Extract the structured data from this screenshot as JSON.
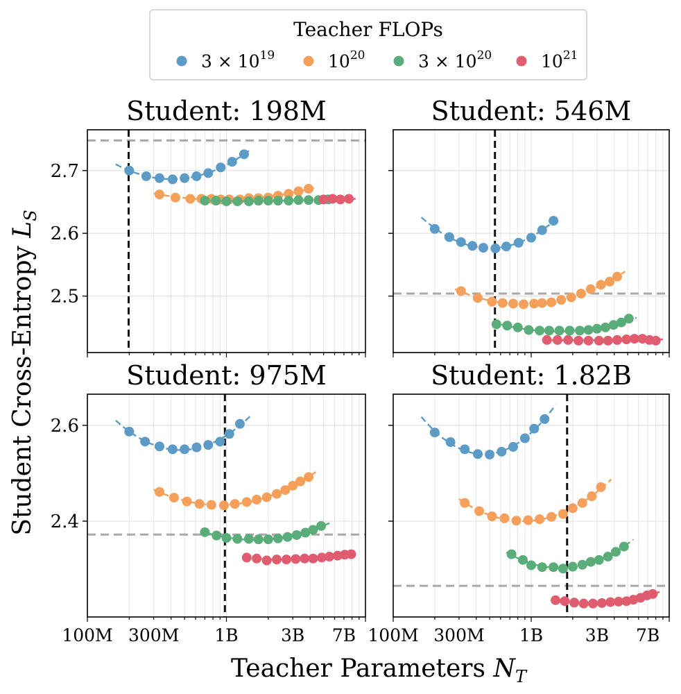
{
  "chart_data": {
    "type": "scatter",
    "x_scale": "log",
    "xlim": [
      100000000.0,
      10000000000.0
    ],
    "grid": true,
    "legend": {
      "title": "Teacher FLOPs",
      "placement": "top-center",
      "entries": [
        {
          "key": "3e19",
          "label_base": "3 × 10",
          "label_exp": "19",
          "color": "#5b9bc5"
        },
        {
          "key": "1e20",
          "label_base": "10",
          "label_exp": "20",
          "color": "#f4a05a"
        },
        {
          "key": "3e20",
          "label_base": "3 × 10",
          "label_exp": "20",
          "color": "#5aac78"
        },
        {
          "key": "1e21",
          "label_base": "10",
          "label_exp": "21",
          "color": "#e05d6f"
        }
      ]
    },
    "xlabel_main": "Teacher Parameters",
    "xlabel_symbol": "N",
    "xlabel_sub": "T",
    "ylabel_main": "Student Cross-Entropy",
    "ylabel_symbol": "L",
    "ylabel_sub": "S",
    "x_tick_values": [
      100000000.0,
      300000000.0,
      1000000000.0,
      3000000000.0,
      7000000000.0
    ],
    "x_tick_labels": [
      "100M",
      "300M",
      "1B",
      "3B",
      "7B"
    ],
    "panels": [
      {
        "title": "Student: 198M",
        "ylim": [
          2.41,
          2.765
        ],
        "y_ticks": [
          2.5,
          2.6,
          2.7
        ],
        "y_tick_labels": [
          "2.5",
          "2.6",
          "2.7"
        ],
        "student_params": 198000000.0,
        "reference_loss": 2.748,
        "series": [
          {
            "key": "3e19",
            "x": [
              200000000.0,
              265000000.0,
              330000000.0,
              410000000.0,
              500000000.0,
              610000000.0,
              740000000.0,
              910000000.0,
              1100000000.0,
              1340000000.0
            ],
            "y": [
              2.7,
              2.691,
              2.688,
              2.686,
              2.688,
              2.691,
              2.696,
              2.705,
              2.714,
              2.726
            ],
            "fit_x": [
              160000000.0,
              1500000000.0
            ]
          },
          {
            "key": "1e20",
            "x": [
              330000000.0,
              430000000.0,
              550000000.0,
              660000000.0,
              780000000.0,
              910000000.0,
              1050000000.0,
              1250000000.0,
              1450000000.0,
              1700000000.0,
              2000000000.0,
              2350000000.0,
              2800000000.0,
              3300000000.0,
              3900000000.0
            ],
            "y": [
              2.662,
              2.657,
              2.655,
              2.655,
              2.655,
              2.654,
              2.654,
              2.654,
              2.656,
              2.656,
              2.657,
              2.66,
              2.663,
              2.667,
              2.671
            ],
            "fit_x": [
              300000000.0,
              4500000000.0
            ]
          },
          {
            "key": "3e20",
            "x": [
              700000000.0,
              840000000.0,
              1000000000.0,
              1200000000.0,
              1450000000.0,
              1700000000.0,
              2000000000.0,
              2350000000.0,
              2800000000.0,
              3300000000.0,
              3900000000.0,
              4600000000.0,
              5400000000.0
            ],
            "y": [
              2.652,
              2.652,
              2.651,
              2.651,
              2.651,
              2.652,
              2.652,
              2.652,
              2.652,
              2.653,
              2.653,
              2.653,
              2.654
            ],
            "fit_x": [
              650000000.0,
              6000000000.0
            ]
          },
          {
            "key": "1e21",
            "x": [
              5000000000.0,
              5800000000.0,
              6600000000.0,
              7600000000.0
            ],
            "y": [
              2.654,
              2.655,
              2.654,
              2.655
            ],
            "fit_x": [
              4800000000.0,
              8500000000.0
            ]
          }
        ]
      },
      {
        "title": "Student: 546M",
        "ylim": [
          2.41,
          2.765
        ],
        "y_ticks": [
          2.5,
          2.6,
          2.7
        ],
        "y_tick_labels": [
          "2.5",
          "2.6",
          "2.7"
        ],
        "student_params": 546000000.0,
        "reference_loss": 2.504,
        "series": [
          {
            "key": "3e19",
            "x": [
              200000000.0,
              255000000.0,
              310000000.0,
              375000000.0,
              450000000.0,
              550000000.0,
              660000000.0,
              810000000.0,
              1000000000.0,
              1200000000.0,
              1450000000.0
            ],
            "y": [
              2.607,
              2.594,
              2.586,
              2.58,
              2.577,
              2.576,
              2.579,
              2.585,
              2.593,
              2.605,
              2.62
            ],
            "fit_x": [
              160000000.0,
              1600000000.0
            ]
          },
          {
            "key": "1e20",
            "x": [
              310000000.0,
              410000000.0,
              520000000.0,
              620000000.0,
              740000000.0,
              880000000.0,
              1050000000.0,
              1200000000.0,
              1400000000.0,
              1650000000.0,
              1950000000.0,
              2300000000.0,
              2700000000.0,
              3200000000.0,
              3700000000.0,
              4200000000.0
            ],
            "y": [
              2.508,
              2.497,
              2.491,
              2.489,
              2.488,
              2.487,
              2.488,
              2.489,
              2.49,
              2.494,
              2.498,
              2.504,
              2.511,
              2.518,
              2.523,
              2.531
            ],
            "fit_x": [
              280000000.0,
              4800000000.0
            ]
          },
          {
            "key": "3e20",
            "x": [
              560000000.0,
              670000000.0,
              800000000.0,
              960000000.0,
              1150000000.0,
              1350000000.0,
              1600000000.0,
              1900000000.0,
              2250000000.0,
              2600000000.0,
              3000000000.0,
              3450000000.0,
              3950000000.0,
              4500000000.0,
              5100000000.0
            ],
            "y": [
              2.455,
              2.453,
              2.45,
              2.446,
              2.445,
              2.445,
              2.445,
              2.445,
              2.445,
              2.446,
              2.448,
              2.45,
              2.454,
              2.458,
              2.464
            ],
            "fit_x": [
              520000000.0,
              5800000000.0
            ]
          },
          {
            "key": "1e21",
            "x": [
              1300000000.0,
              1550000000.0,
              1850000000.0,
              2200000000.0,
              2600000000.0,
              3100000000.0,
              3600000000.0,
              4200000000.0,
              4900000000.0,
              5600000000.0,
              6400000000.0,
              7200000000.0,
              8000000000.0
            ],
            "y": [
              2.43,
              2.43,
              2.43,
              2.429,
              2.429,
              2.429,
              2.429,
              2.43,
              2.431,
              2.432,
              2.432,
              2.43,
              2.429
            ],
            "fit_x": [
              1200000000.0,
              9000000000.0
            ]
          }
        ]
      },
      {
        "title": "Student: 975M",
        "ylim": [
          2.2,
          2.665
        ],
        "y_ticks": [
          2.4,
          2.6
        ],
        "y_tick_labels": [
          "2.4",
          "2.6"
        ],
        "student_params": 975000000.0,
        "reference_loss": 2.372,
        "series": [
          {
            "key": "3e19",
            "x": [
              200000000.0,
              260000000.0,
              330000000.0,
              410000000.0,
              500000000.0,
              610000000.0,
              740000000.0,
              900000000.0,
              1050000000.0,
              1250000000.0
            ],
            "y": [
              2.587,
              2.566,
              2.556,
              2.55,
              2.55,
              2.554,
              2.559,
              2.566,
              2.582,
              2.603
            ],
            "fit_x": [
              160000000.0,
              1500000000.0
            ]
          },
          {
            "key": "1e20",
            "x": [
              330000000.0,
              420000000.0,
              520000000.0,
              640000000.0,
              780000000.0,
              960000000.0,
              1150000000.0,
              1400000000.0,
              1650000000.0,
              1950000000.0,
              2300000000.0,
              2650000000.0,
              3000000000.0,
              3400000000.0,
              3900000000.0
            ],
            "y": [
              2.461,
              2.449,
              2.441,
              2.436,
              2.434,
              2.433,
              2.436,
              2.44,
              2.445,
              2.45,
              2.457,
              2.465,
              2.474,
              2.483,
              2.492
            ],
            "fit_x": [
              300000000.0,
              4600000000.0
            ]
          },
          {
            "key": "3e20",
            "x": [
              700000000.0,
              850000000.0,
              1000000000.0,
              1200000000.0,
              1450000000.0,
              1700000000.0,
              2000000000.0,
              2350000000.0,
              2750000000.0,
              3200000000.0,
              3700000000.0,
              4200000000.0,
              4800000000.0
            ],
            "y": [
              2.377,
              2.37,
              2.365,
              2.363,
              2.363,
              2.362,
              2.362,
              2.364,
              2.367,
              2.371,
              2.376,
              2.382,
              2.39
            ],
            "fit_x": [
              650000000.0,
              5600000000.0
            ]
          },
          {
            "key": "1e21",
            "x": [
              1400000000.0,
              1650000000.0,
              1950000000.0,
              2300000000.0,
              2700000000.0,
              3150000000.0,
              3650000000.0,
              4200000000.0,
              4850000000.0,
              5500000000.0,
              6300000000.0,
              7100000000.0,
              7900000000.0
            ],
            "y": [
              2.324,
              2.322,
              2.318,
              2.32,
              2.32,
              2.321,
              2.322,
              2.322,
              2.324,
              2.326,
              2.328,
              2.33,
              2.331
            ],
            "fit_x": [
              1300000000.0,
              8800000000.0
            ]
          }
        ]
      },
      {
        "title": "Student: 1.82B",
        "ylim": [
          2.2,
          2.665
        ],
        "y_ticks": [
          2.4,
          2.6
        ],
        "y_tick_labels": [
          "2.4",
          "2.6"
        ],
        "student_params": 1820000000.0,
        "reference_loss": 2.265,
        "series": [
          {
            "key": "3e19",
            "x": [
              200000000.0,
              260000000.0,
              330000000.0,
              410000000.0,
              500000000.0,
              610000000.0,
              740000000.0,
              900000000.0,
              1050000000.0,
              1250000000.0
            ],
            "y": [
              2.585,
              2.565,
              2.55,
              2.54,
              2.539,
              2.545,
              2.555,
              2.573,
              2.593,
              2.613
            ],
            "fit_x": [
              160000000.0,
              1500000000.0
            ]
          },
          {
            "key": "1e20",
            "x": [
              330000000.0,
              420000000.0,
              520000000.0,
              640000000.0,
              780000000.0,
              950000000.0,
              1150000000.0,
              1400000000.0,
              1700000000.0,
              2000000000.0,
              2350000000.0,
              2750000000.0,
              3200000000.0
            ],
            "y": [
              2.438,
              2.421,
              2.41,
              2.406,
              2.401,
              2.402,
              2.404,
              2.409,
              2.415,
              2.427,
              2.438,
              2.452,
              2.471
            ],
            "fit_x": [
              300000000.0,
              3800000000.0
            ]
          },
          {
            "key": "3e20",
            "x": [
              720000000.0,
              870000000.0,
              1000000000.0,
              1200000000.0,
              1450000000.0,
              1700000000.0,
              2000000000.0,
              2350000000.0,
              2700000000.0,
              3100000000.0,
              3600000000.0,
              4100000000.0,
              4700000000.0
            ],
            "y": [
              2.331,
              2.319,
              2.308,
              2.304,
              2.304,
              2.301,
              2.305,
              2.309,
              2.315,
              2.319,
              2.326,
              2.336,
              2.347
            ],
            "fit_x": [
              660000000.0,
              5500000000.0
            ]
          },
          {
            "key": "1e21",
            "x": [
              1500000000.0,
              1750000000.0,
              2050000000.0,
              2400000000.0,
              2800000000.0,
              3250000000.0,
              3750000000.0,
              4300000000.0,
              4900000000.0,
              5500000000.0,
              6200000000.0,
              6900000000.0,
              7600000000.0
            ],
            "y": [
              2.235,
              2.233,
              2.23,
              2.228,
              2.228,
              2.229,
              2.231,
              2.232,
              2.233,
              2.236,
              2.24,
              2.245,
              2.248
            ],
            "fit_x": [
              1400000000.0,
              8500000000.0
            ]
          }
        ]
      }
    ]
  }
}
